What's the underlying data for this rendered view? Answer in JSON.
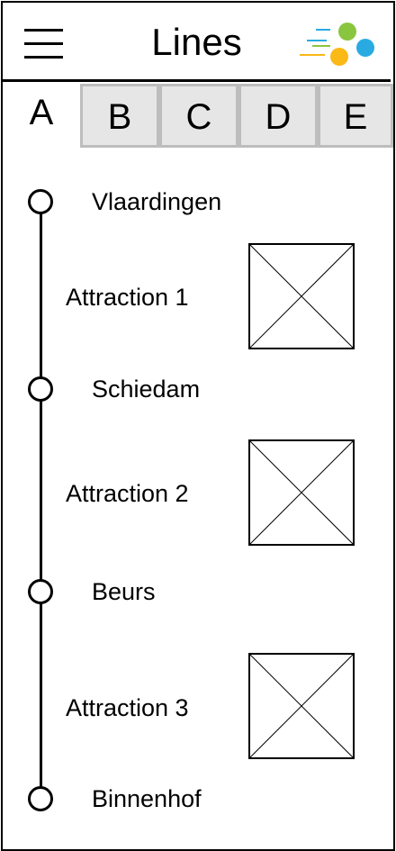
{
  "header": {
    "title": "Lines",
    "menu_icon": "hamburger-menu-icon",
    "logo_icon": "colored-dots-logo-icon",
    "logo_colors": [
      "#8ac53f",
      "#29abe2",
      "#fbb917"
    ]
  },
  "tabs": [
    {
      "label": "A",
      "active": true
    },
    {
      "label": "B",
      "active": false
    },
    {
      "label": "C",
      "active": false
    },
    {
      "label": "D",
      "active": false
    },
    {
      "label": "E",
      "active": false
    }
  ],
  "stops": [
    "Vlaardingen",
    "Schiedam",
    "Beurs",
    "Binnenhof"
  ],
  "attractions": [
    {
      "label": "Attraction 1",
      "image_icon": "image-placeholder-icon"
    },
    {
      "label": "Attraction 2",
      "image_icon": "image-placeholder-icon"
    },
    {
      "label": "Attraction 3",
      "image_icon": "image-placeholder-icon"
    }
  ]
}
